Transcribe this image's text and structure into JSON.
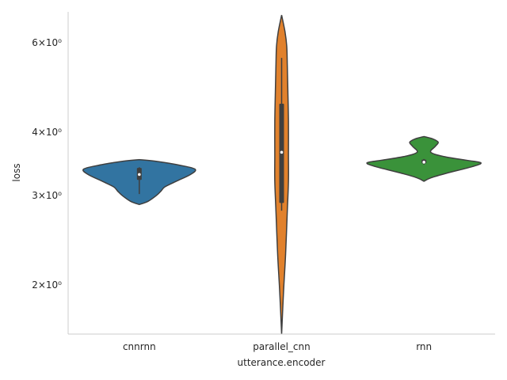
{
  "chart_data": {
    "type": "violin",
    "xlabel": "utterance.encoder",
    "ylabel": "loss",
    "yscale": "log",
    "ylim": [
      1.6,
      6.9
    ],
    "yticks": [
      {
        "value": 2,
        "label": "2×10⁰"
      },
      {
        "value": 3,
        "label": "3×10⁰"
      },
      {
        "value": 4,
        "label": "4×10⁰"
      },
      {
        "value": 6,
        "label": "6×10⁰"
      }
    ],
    "categories": [
      "cnnrnn",
      "parallel_cnn",
      "rnn"
    ],
    "series": [
      {
        "category": "cnnrnn",
        "color": "#3274a1",
        "density": [
          [
            2.88,
            0.0
          ],
          [
            2.92,
            0.15
          ],
          [
            3.0,
            0.3
          ],
          [
            3.06,
            0.38
          ],
          [
            3.12,
            0.45
          ],
          [
            3.2,
            0.65
          ],
          [
            3.3,
            0.9
          ],
          [
            3.38,
            0.98
          ],
          [
            3.44,
            0.72
          ],
          [
            3.5,
            0.32
          ],
          [
            3.53,
            0.0
          ]
        ],
        "q1": 3.22,
        "median": 3.3,
        "q3": 3.4,
        "whisker_low": 3.02,
        "whisker_high": 3.41
      },
      {
        "category": "parallel_cnn",
        "color": "#e1812c",
        "density": [
          [
            1.6,
            0.0
          ],
          [
            1.8,
            0.02
          ],
          [
            2.0,
            0.04
          ],
          [
            2.3,
            0.07
          ],
          [
            2.8,
            0.1
          ],
          [
            3.2,
            0.12
          ],
          [
            3.6,
            0.12
          ],
          [
            4.2,
            0.12
          ],
          [
            4.8,
            0.11
          ],
          [
            5.4,
            0.1
          ],
          [
            5.9,
            0.09
          ],
          [
            6.3,
            0.06
          ],
          [
            6.8,
            0.0
          ]
        ],
        "q1": 2.9,
        "median": 3.65,
        "q3": 4.55,
        "whisker_low": 2.8,
        "whisker_high": 5.6
      },
      {
        "category": "rnn",
        "color": "#3a923a",
        "density": [
          [
            3.2,
            0.0
          ],
          [
            3.25,
            0.12
          ],
          [
            3.32,
            0.4
          ],
          [
            3.42,
            0.85
          ],
          [
            3.48,
            1.0
          ],
          [
            3.52,
            0.75
          ],
          [
            3.58,
            0.35
          ],
          [
            3.65,
            0.12
          ],
          [
            3.75,
            0.2
          ],
          [
            3.82,
            0.25
          ],
          [
            3.88,
            0.15
          ],
          [
            3.92,
            0.0
          ]
        ],
        "q1": 3.47,
        "median": 3.49,
        "q3": 3.53,
        "whisker_low": 3.45,
        "whisker_high": 3.54
      }
    ]
  }
}
